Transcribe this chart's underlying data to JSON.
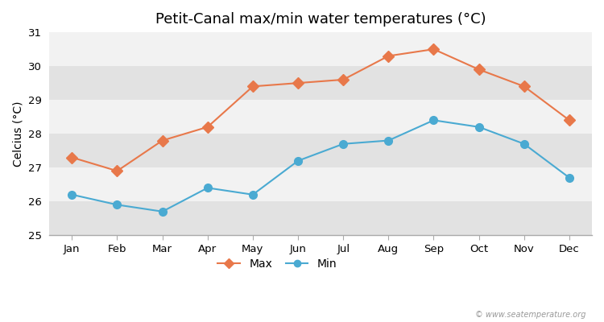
{
  "title": "Petit-Canal max/min water temperatures (°C)",
  "ylabel": "Celcius (°C)",
  "months": [
    "Jan",
    "Feb",
    "Mar",
    "Apr",
    "May",
    "Jun",
    "Jul",
    "Aug",
    "Sep",
    "Oct",
    "Nov",
    "Dec"
  ],
  "max_values": [
    27.3,
    26.9,
    27.8,
    28.2,
    29.4,
    29.5,
    29.6,
    30.3,
    30.5,
    29.9,
    29.4,
    28.4
  ],
  "min_values": [
    26.2,
    25.9,
    25.7,
    26.4,
    26.2,
    27.2,
    27.7,
    27.8,
    28.4,
    28.2,
    27.7,
    26.7
  ],
  "ylim": [
    25,
    31
  ],
  "yticks": [
    25,
    26,
    27,
    28,
    29,
    30,
    31
  ],
  "max_color": "#e8784a",
  "min_color": "#4aaad2",
  "fig_bg_color": "#ffffff",
  "plot_bg_color": "#e8e8e8",
  "band_light_color": "#f2f2f2",
  "band_dark_color": "#e2e2e2",
  "watermark": "© www.seatemperature.org",
  "title_fontsize": 13,
  "label_fontsize": 10,
  "tick_fontsize": 9.5
}
